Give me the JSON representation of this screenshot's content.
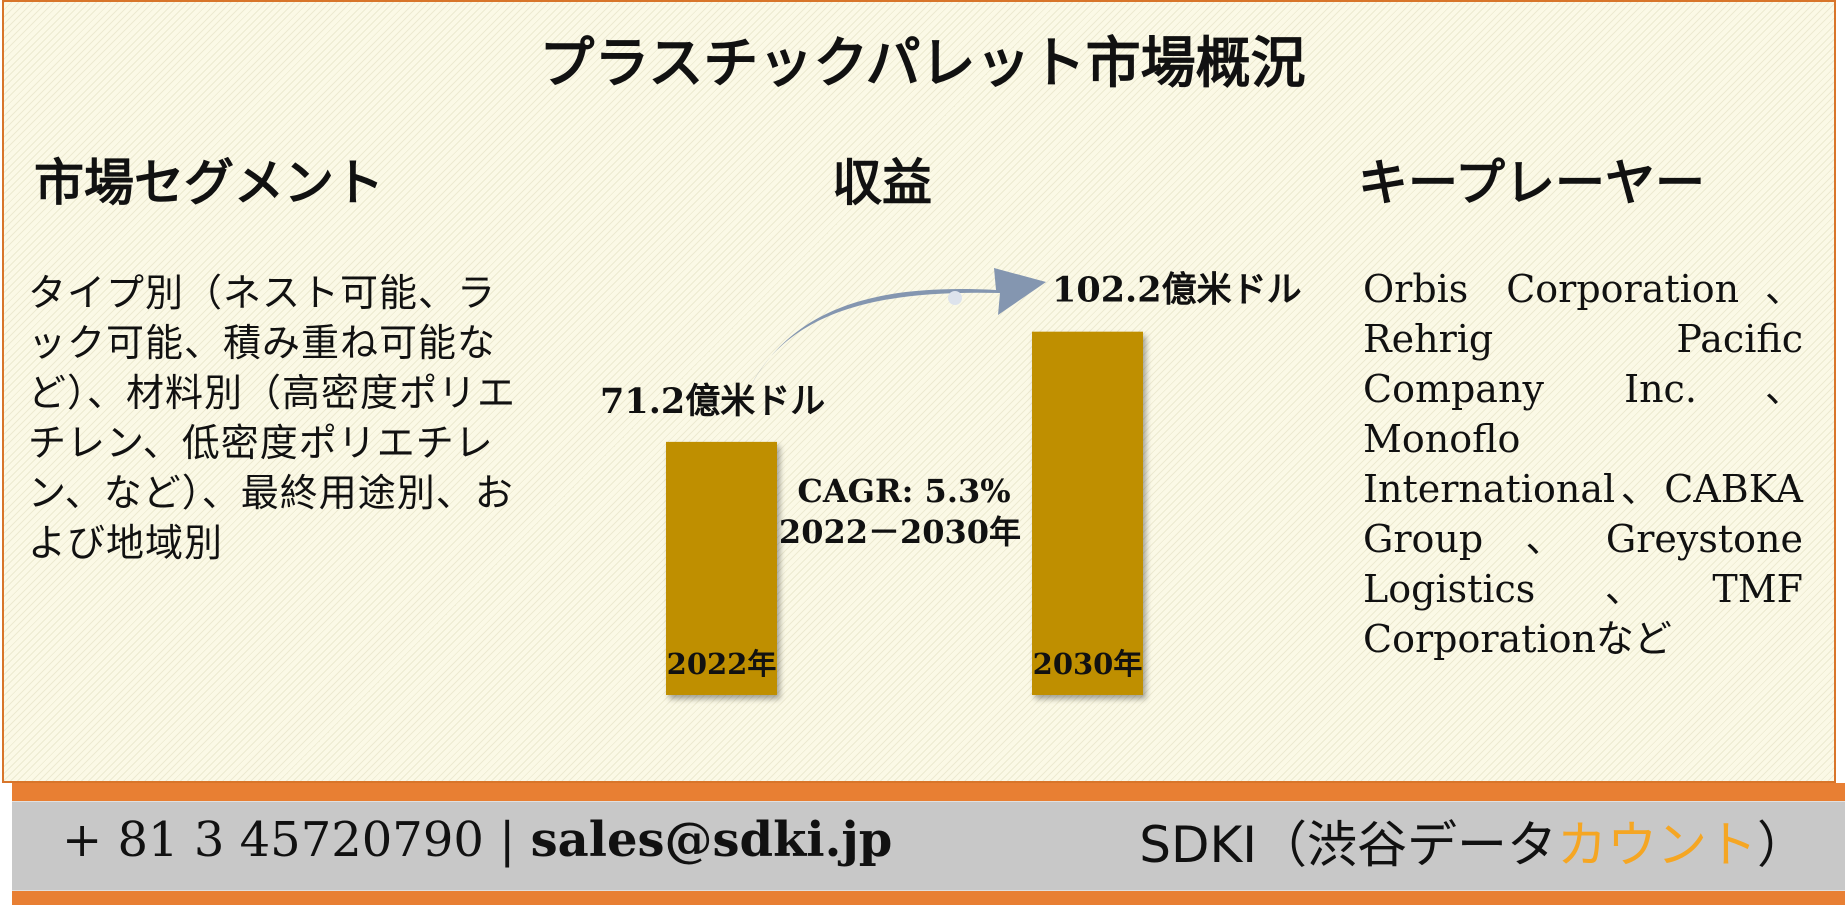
{
  "title": "プラスチックパレット市場概況",
  "segments": {
    "heading": "市場セグメント",
    "text": "タイプ別（ネスト可能、ラック可能、積み重ね可能など）、材料別（高密度ポリエチレン、低密度ポリエチレン、など）、最終用途別、および地域別"
  },
  "revenue": {
    "heading": "収益"
  },
  "players": {
    "heading": "キープレーヤー",
    "text": "Orbis Corporation、Rehrig Pacific Company Inc.、Monoflo International、CABKA Group、Greystone Logistics、TMF Corporationなど"
  },
  "chart_data": {
    "type": "bar",
    "categories": [
      "2022年",
      "2030年"
    ],
    "values": [
      71.2,
      102.2
    ],
    "value_labels": [
      "71.2億米ドル",
      "102.2億米ドル"
    ],
    "unit": "億米ドル",
    "bar_color": "#bf8f00",
    "annotation": [
      "CAGR: 5.3%",
      "2022－2030年"
    ],
    "arrow_color": "#8496b0"
  },
  "footer": {
    "contact_prefix": "+ 81 3 45720790 | ",
    "email": "sales@sdki.jp",
    "brand_main": "SDKI（渋谷データ",
    "brand_accent": "カウント",
    "brand_end": "）",
    "bar_color": "#e87f33",
    "accent_color": "#f5a623"
  }
}
